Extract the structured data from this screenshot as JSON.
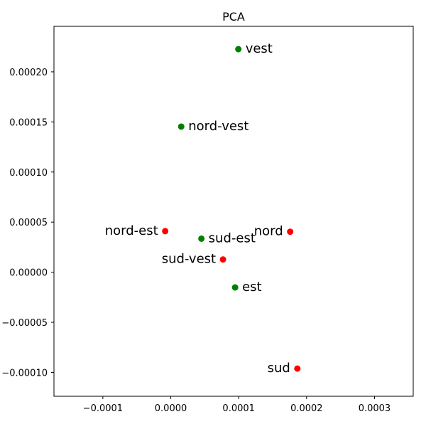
{
  "chart_data": {
    "type": "scatter",
    "title": "PCA",
    "xlabel": "",
    "ylabel": "",
    "xlim": [
      -0.000172,
      0.000357
    ],
    "ylim": [
      -0.0001238,
      0.0002454
    ],
    "grid": false,
    "x_ticks": [
      "−0.0001",
      "0.0000",
      "0.0001",
      "0.0002",
      "0.0003"
    ],
    "x_tick_values": [
      -0.0001,
      0.0,
      0.0001,
      0.0002,
      0.0003
    ],
    "y_ticks": [
      "−0.00010",
      "−0.00005",
      "0.00000",
      "0.00005",
      "0.00010",
      "0.00015",
      "0.00020"
    ],
    "y_tick_values": [
      -0.0001,
      -5e-05,
      0.0,
      5e-05,
      0.0001,
      0.00015,
      0.0002
    ],
    "colors": {
      "green": "#008000",
      "red": "#ff0000"
    },
    "points": [
      {
        "label": "vest",
        "x": 9.95e-05,
        "y": 0.0002226,
        "color": "green",
        "label_side": "right"
      },
      {
        "label": "nord-vest",
        "x": 1.54e-05,
        "y": 0.0001453,
        "color": "green",
        "label_side": "right"
      },
      {
        "label": "sud-est",
        "x": 4.51e-05,
        "y": 3.35e-05,
        "color": "green",
        "label_side": "right"
      },
      {
        "label": "est",
        "x": 9.47e-05,
        "y": -1.52e-05,
        "color": "green",
        "label_side": "right"
      },
      {
        "label": "nord-est",
        "x": -8.2e-06,
        "y": 4.1e-05,
        "color": "red",
        "label_side": "left"
      },
      {
        "label": "nord",
        "x": 0.0001758,
        "y": 4.04e-05,
        "color": "red",
        "label_side": "left"
      },
      {
        "label": "sud-vest",
        "x": 7.69e-05,
        "y": 1.27e-05,
        "color": "red",
        "label_side": "left"
      },
      {
        "label": "sud",
        "x": 0.0001864,
        "y": -9.62e-05,
        "color": "red",
        "label_side": "left"
      }
    ]
  }
}
